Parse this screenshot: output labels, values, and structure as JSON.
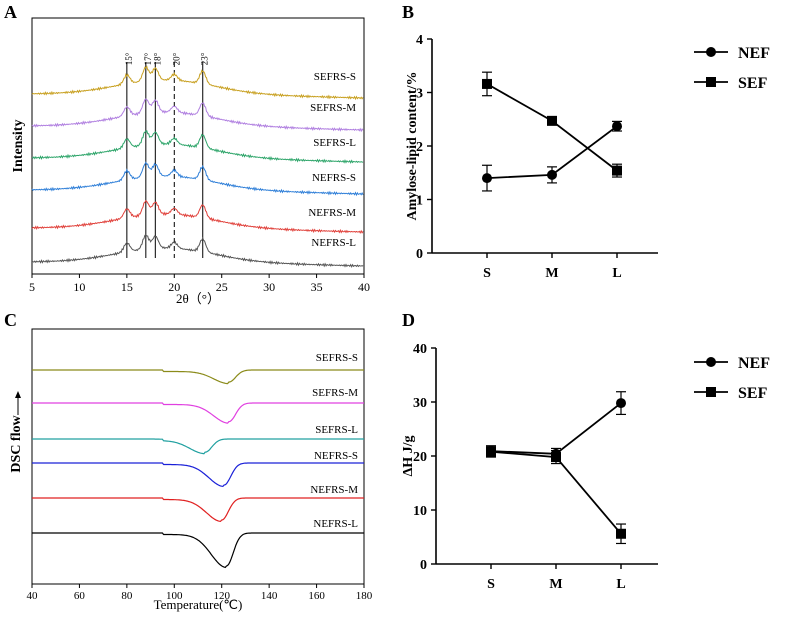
{
  "chart_data": [
    {
      "panel": "A",
      "type": "line",
      "xlabel": "2θ（°）",
      "ylabel": "Intensity",
      "xlim": [
        5,
        40
      ],
      "xticks": [
        5,
        10,
        15,
        20,
        25,
        30,
        35,
        40
      ],
      "peak_markers": [
        {
          "x": 15,
          "label": "15°",
          "style": "solid"
        },
        {
          "x": 17,
          "label": "17°",
          "style": "solid"
        },
        {
          "x": 18,
          "label": "18°",
          "style": "solid"
        },
        {
          "x": 20,
          "label": "20°",
          "style": "dashed"
        },
        {
          "x": 23,
          "label": "23°",
          "style": "solid"
        }
      ],
      "series": [
        {
          "name": "SEFRS-S",
          "color": "#c8a020"
        },
        {
          "name": "SEFRS-M",
          "color": "#b07fe0"
        },
        {
          "name": "SEFRS-L",
          "color": "#2ea56a"
        },
        {
          "name": "NEFRS-S",
          "color": "#2f7fd8"
        },
        {
          "name": "NEFRS-M",
          "color": "#e0403a"
        },
        {
          "name": "NEFRS-L",
          "color": "#555555"
        }
      ]
    },
    {
      "panel": "B",
      "type": "line",
      "ylabel": "Amylose-lipid content/%",
      "categories": [
        "S",
        "M",
        "L"
      ],
      "ylim": [
        0,
        4
      ],
      "yticks": [
        0,
        1,
        2,
        3,
        4
      ],
      "series": [
        {
          "name": "NEF",
          "marker": "circle",
          "values": [
            1.4,
            1.46,
            2.37
          ],
          "errors": [
            0.24,
            0.15,
            0.09
          ]
        },
        {
          "name": "SEF",
          "marker": "square",
          "values": [
            3.16,
            2.47,
            1.54
          ],
          "errors": [
            0.22,
            0.03,
            0.12
          ]
        }
      ]
    },
    {
      "panel": "C",
      "type": "line",
      "xlabel": "Temperature(℃)",
      "ylabel": "DSC flow",
      "xlim": [
        40,
        180
      ],
      "xticks": [
        40,
        60,
        80,
        100,
        120,
        140,
        160,
        180
      ],
      "series": [
        {
          "name": "SEFRS-S",
          "color": "#8b8b1a",
          "peak_x": 123,
          "depth": 0.55
        },
        {
          "name": "SEFRS-M",
          "color": "#e040e0",
          "peak_x": 123,
          "depth": 0.85
        },
        {
          "name": "SEFRS-L",
          "color": "#20a0a0",
          "peak_x": 113,
          "depth": 0.6
        },
        {
          "name": "NEFRS-S",
          "color": "#1a20d8",
          "peak_x": 121,
          "depth": 1.0
        },
        {
          "name": "NEFRS-M",
          "color": "#e02020",
          "peak_x": 120,
          "depth": 1.0
        },
        {
          "name": "NEFRS-L",
          "color": "#000000",
          "peak_x": 122,
          "depth": 1.5
        }
      ]
    },
    {
      "panel": "D",
      "type": "line",
      "ylabel": "ΔH J/g",
      "categories": [
        "S",
        "M",
        "L"
      ],
      "ylim": [
        0,
        40
      ],
      "yticks": [
        0,
        10,
        20,
        30,
        40
      ],
      "series": [
        {
          "name": "NEF",
          "marker": "circle",
          "values": [
            20.9,
            20.4,
            29.8
          ],
          "errors": [
            1.0,
            1.0,
            2.1
          ]
        },
        {
          "name": "SEF",
          "marker": "square",
          "values": [
            20.8,
            19.8,
            5.6
          ],
          "errors": [
            1.0,
            1.2,
            1.8
          ]
        }
      ]
    }
  ],
  "panel_labels": [
    "A",
    "B",
    "C",
    "D"
  ]
}
